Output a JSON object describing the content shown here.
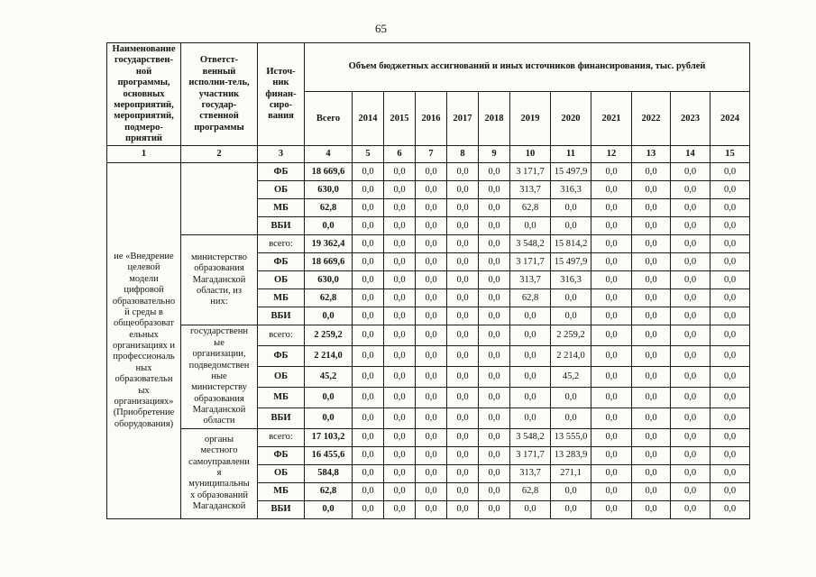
{
  "page": {
    "number": "65"
  },
  "table": {
    "header": {
      "col1": "Наименование\nгосударствен-\nной\nпрограммы,\nосновных\nмероприятий,\nмероприятий,\nподмеро-\nприятий",
      "col2": "Ответст-\nвенный\nисполни-тель,\nучастник\nгосудар-\nственной\nпрограммы",
      "col3": "Источ-\nник\nфинан-\nсиро-\nвания",
      "group": "Объем бюджетных ассигнований и иных источников финансирования, тыс. рублей",
      "years": [
        "Всего",
        "2014",
        "2015",
        "2016",
        "2017",
        "2018",
        "2019",
        "2020",
        "2021",
        "2022",
        "2023",
        "2024"
      ],
      "numbering": [
        "1",
        "2",
        "3",
        "4",
        "5",
        "6",
        "7",
        "8",
        "9",
        "10",
        "11",
        "12",
        "13",
        "14",
        "15"
      ]
    },
    "program_name": "ие «Внедрение\nцелевой\nмодели\nцифровой\nобразовательно\nй среды в\nобщеобразоват\nельных\nорганизациях и\nпрофессиональ\nных\nобразовательн\nых\nорганизациях»\n(Приобретение\nоборудования)",
    "blocks": [
      {
        "executor": "",
        "rows": [
          {
            "source": "ФБ",
            "values": [
              "18 669,6",
              "0,0",
              "0,0",
              "0,0",
              "0,0",
              "0,0",
              "3 171,7",
              "15 497,9",
              "0,0",
              "0,0",
              "0,0",
              "0,0"
            ]
          },
          {
            "source": "ОБ",
            "values": [
              "630,0",
              "0,0",
              "0,0",
              "0,0",
              "0,0",
              "0,0",
              "313,7",
              "316,3",
              "0,0",
              "0,0",
              "0,0",
              "0,0"
            ]
          },
          {
            "source": "МБ",
            "values": [
              "62,8",
              "0,0",
              "0,0",
              "0,0",
              "0,0",
              "0,0",
              "62,8",
              "0,0",
              "0,0",
              "0,0",
              "0,0",
              "0,0"
            ]
          },
          {
            "source": "ВБИ",
            "values": [
              "0,0",
              "0,0",
              "0,0",
              "0,0",
              "0,0",
              "0,0",
              "0,0",
              "0,0",
              "0,0",
              "0,0",
              "0,0",
              "0,0"
            ]
          }
        ]
      },
      {
        "executor": "министерство\nобразования\nМагаданской\nобласти, из\nних:",
        "rows": [
          {
            "source": "всего:",
            "values": [
              "19 362,4",
              "0,0",
              "0,0",
              "0,0",
              "0,0",
              "0,0",
              "3 548,2",
              "15 814,2",
              "0,0",
              "0,0",
              "0,0",
              "0,0"
            ]
          },
          {
            "source": "ФБ",
            "values": [
              "18 669,6",
              "0,0",
              "0,0",
              "0,0",
              "0,0",
              "0,0",
              "3 171,7",
              "15 497,9",
              "0,0",
              "0,0",
              "0,0",
              "0,0"
            ]
          },
          {
            "source": "ОБ",
            "values": [
              "630,0",
              "0,0",
              "0,0",
              "0,0",
              "0,0",
              "0,0",
              "313,7",
              "316,3",
              "0,0",
              "0,0",
              "0,0",
              "0,0"
            ]
          },
          {
            "source": "МБ",
            "values": [
              "62,8",
              "0,0",
              "0,0",
              "0,0",
              "0,0",
              "0,0",
              "62,8",
              "0,0",
              "0,0",
              "0,0",
              "0,0",
              "0,0"
            ]
          },
          {
            "source": "ВБИ",
            "values": [
              "0,0",
              "0,0",
              "0,0",
              "0,0",
              "0,0",
              "0,0",
              "0,0",
              "0,0",
              "0,0",
              "0,0",
              "0,0",
              "0,0"
            ]
          }
        ]
      },
      {
        "executor": "государственн\nые\nорганизации,\nподведомствен\nные\nминистерству\nобразования\nМагаданской\nобласти",
        "rows": [
          {
            "source": "всего:",
            "values": [
              "2 259,2",
              "0,0",
              "0,0",
              "0,0",
              "0,0",
              "0,0",
              "0,0",
              "2 259,2",
              "0,0",
              "0,0",
              "0,0",
              "0,0"
            ]
          },
          {
            "source": "ФБ",
            "values": [
              "2 214,0",
              "0,0",
              "0,0",
              "0,0",
              "0,0",
              "0,0",
              "0,0",
              "2 214,0",
              "0,0",
              "0,0",
              "0,0",
              "0,0"
            ]
          },
          {
            "source": "ОБ",
            "values": [
              "45,2",
              "0,0",
              "0,0",
              "0,0",
              "0,0",
              "0,0",
              "0,0",
              "45,2",
              "0,0",
              "0,0",
              "0,0",
              "0,0"
            ]
          },
          {
            "source": "МБ",
            "values": [
              "0,0",
              "0,0",
              "0,0",
              "0,0",
              "0,0",
              "0,0",
              "0,0",
              "0,0",
              "0,0",
              "0,0",
              "0,0",
              "0,0"
            ]
          },
          {
            "source": "ВБИ",
            "values": [
              "0,0",
              "0,0",
              "0,0",
              "0,0",
              "0,0",
              "0,0",
              "0,0",
              "0,0",
              "0,0",
              "0,0",
              "0,0",
              "0,0"
            ]
          }
        ]
      },
      {
        "executor": "органы\nместного\nсамоуправлени\nя\nмуниципальны\nх образований\nМагаданской",
        "rows": [
          {
            "source": "всего:",
            "values": [
              "17 103,2",
              "0,0",
              "0,0",
              "0,0",
              "0,0",
              "0,0",
              "3 548,2",
              "13 555,0",
              "0,0",
              "0,0",
              "0,0",
              "0,0"
            ]
          },
          {
            "source": "ФБ",
            "values": [
              "16 455,6",
              "0,0",
              "0,0",
              "0,0",
              "0,0",
              "0,0",
              "3 171,7",
              "13 283,9",
              "0,0",
              "0,0",
              "0,0",
              "0,0"
            ]
          },
          {
            "source": "ОБ",
            "values": [
              "584,8",
              "0,0",
              "0,0",
              "0,0",
              "0,0",
              "0,0",
              "313,7",
              "271,1",
              "0,0",
              "0,0",
              "0,0",
              "0,0"
            ]
          },
          {
            "source": "МБ",
            "values": [
              "62,8",
              "0,0",
              "0,0",
              "0,0",
              "0,0",
              "0,0",
              "62,8",
              "0,0",
              "0,0",
              "0,0",
              "0,0",
              "0,0"
            ]
          },
          {
            "source": "ВБИ",
            "values": [
              "0,0",
              "0,0",
              "0,0",
              "0,0",
              "0,0",
              "0,0",
              "0,0",
              "0,0",
              "0,0",
              "0,0",
              "0,0",
              "0,0"
            ]
          }
        ]
      }
    ]
  }
}
